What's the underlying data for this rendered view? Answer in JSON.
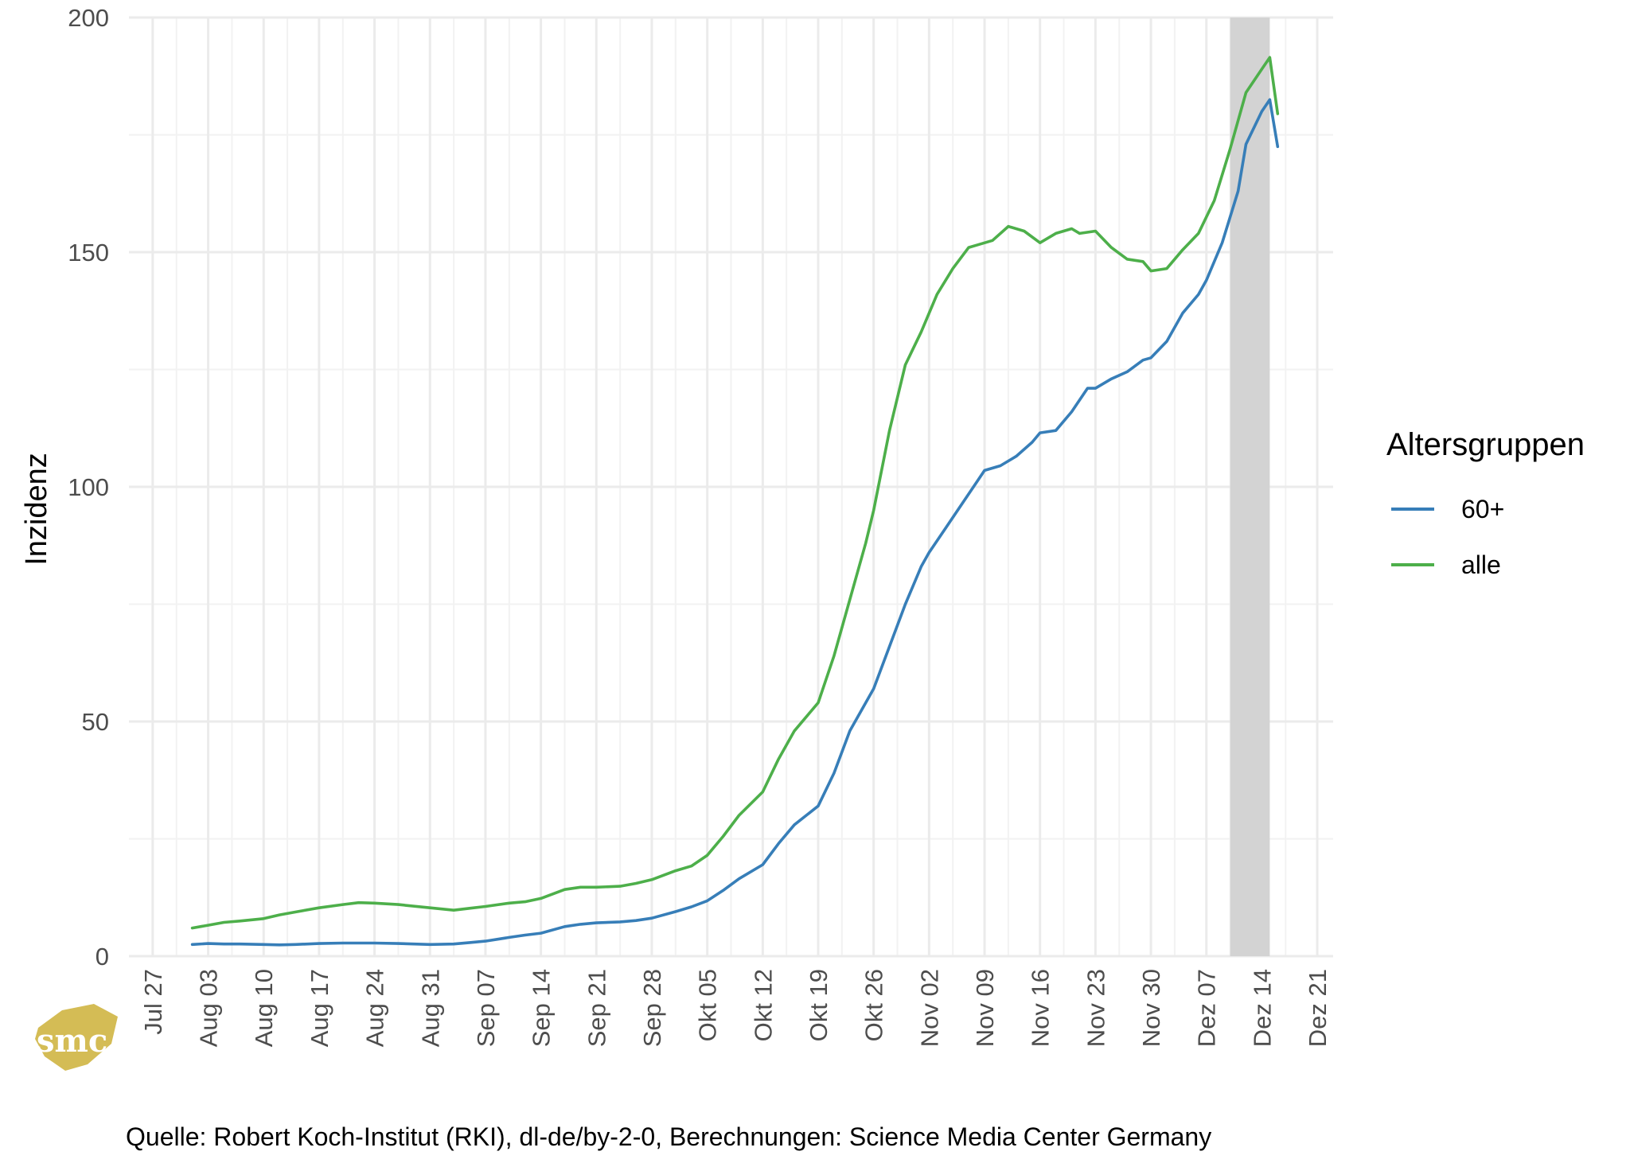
{
  "chart_data": {
    "type": "line",
    "title": "",
    "xlabel": "",
    "ylabel": "Inzidenz",
    "caption": "Quelle: Robert Koch-Institut (RKI), dl-de/by-2-0, Berechnungen: Science Media Center Germany",
    "logo_text": "smc",
    "grid": true,
    "ylim": [
      0,
      200
    ],
    "yticks": [
      0,
      50,
      100,
      150,
      200
    ],
    "xlim": [
      "2020-07-24",
      "2020-12-23"
    ],
    "xticks": [
      {
        "date": "2020-07-27",
        "label": "Jul 27"
      },
      {
        "date": "2020-08-03",
        "label": "Aug 03"
      },
      {
        "date": "2020-08-10",
        "label": "Aug 10"
      },
      {
        "date": "2020-08-17",
        "label": "Aug 17"
      },
      {
        "date": "2020-08-24",
        "label": "Aug 24"
      },
      {
        "date": "2020-08-31",
        "label": "Aug 31"
      },
      {
        "date": "2020-09-07",
        "label": "Sep 07"
      },
      {
        "date": "2020-09-14",
        "label": "Sep 14"
      },
      {
        "date": "2020-09-21",
        "label": "Sep 21"
      },
      {
        "date": "2020-09-28",
        "label": "Sep 28"
      },
      {
        "date": "2020-10-05",
        "label": "Okt 05"
      },
      {
        "date": "2020-10-12",
        "label": "Okt 12"
      },
      {
        "date": "2020-10-19",
        "label": "Okt 19"
      },
      {
        "date": "2020-10-26",
        "label": "Okt 26"
      },
      {
        "date": "2020-11-02",
        "label": "Nov 02"
      },
      {
        "date": "2020-11-09",
        "label": "Nov 09"
      },
      {
        "date": "2020-11-16",
        "label": "Nov 16"
      },
      {
        "date": "2020-11-23",
        "label": "Nov 23"
      },
      {
        "date": "2020-11-30",
        "label": "Nov 30"
      },
      {
        "date": "2020-12-07",
        "label": "Dez 07"
      },
      {
        "date": "2020-12-14",
        "label": "Dez 14"
      },
      {
        "date": "2020-12-21",
        "label": "Dez 21"
      }
    ],
    "shaded_region": {
      "from": "2020-12-10",
      "to": "2020-12-15",
      "color": "#d3d3d3"
    },
    "legend": {
      "title": "Altersgruppen",
      "position": "right"
    },
    "series": [
      {
        "name": "60+",
        "color": "#377eb8",
        "points": [
          [
            "2020-08-01",
            2.5
          ],
          [
            "2020-08-03",
            2.7
          ],
          [
            "2020-08-05",
            2.6
          ],
          [
            "2020-08-07",
            2.6
          ],
          [
            "2020-08-10",
            2.5
          ],
          [
            "2020-08-12",
            2.4
          ],
          [
            "2020-08-14",
            2.5
          ],
          [
            "2020-08-17",
            2.7
          ],
          [
            "2020-08-20",
            2.8
          ],
          [
            "2020-08-24",
            2.8
          ],
          [
            "2020-08-27",
            2.7
          ],
          [
            "2020-08-31",
            2.5
          ],
          [
            "2020-09-03",
            2.6
          ],
          [
            "2020-09-05",
            2.9
          ],
          [
            "2020-09-07",
            3.2
          ],
          [
            "2020-09-10",
            4.0
          ],
          [
            "2020-09-12",
            4.5
          ],
          [
            "2020-09-14",
            4.9
          ],
          [
            "2020-09-17",
            6.3
          ],
          [
            "2020-09-19",
            6.8
          ],
          [
            "2020-09-21",
            7.1
          ],
          [
            "2020-09-24",
            7.3
          ],
          [
            "2020-09-26",
            7.6
          ],
          [
            "2020-09-28",
            8.1
          ],
          [
            "2020-10-01",
            9.5
          ],
          [
            "2020-10-03",
            10.5
          ],
          [
            "2020-10-05",
            11.8
          ],
          [
            "2020-10-07",
            14.0
          ],
          [
            "2020-10-09",
            16.5
          ],
          [
            "2020-10-12",
            19.5
          ],
          [
            "2020-10-14",
            24.0
          ],
          [
            "2020-10-16",
            28.0
          ],
          [
            "2020-10-19",
            32.0
          ],
          [
            "2020-10-21",
            39.0
          ],
          [
            "2020-10-23",
            48.0
          ],
          [
            "2020-10-26",
            57.0
          ],
          [
            "2020-10-28",
            66.0
          ],
          [
            "2020-10-30",
            75.0
          ],
          [
            "2020-11-01",
            83.0
          ],
          [
            "2020-11-02",
            86.0
          ],
          [
            "2020-11-04",
            91.0
          ],
          [
            "2020-11-06",
            96.0
          ],
          [
            "2020-11-08",
            101.0
          ],
          [
            "2020-11-09",
            103.5
          ],
          [
            "2020-11-11",
            104.5
          ],
          [
            "2020-11-13",
            106.5
          ],
          [
            "2020-11-15",
            109.5
          ],
          [
            "2020-11-16",
            111.5
          ],
          [
            "2020-11-18",
            112.0
          ],
          [
            "2020-11-20",
            116.0
          ],
          [
            "2020-11-22",
            121.0
          ],
          [
            "2020-11-23",
            121.0
          ],
          [
            "2020-11-25",
            123.0
          ],
          [
            "2020-11-27",
            124.5
          ],
          [
            "2020-11-29",
            127.0
          ],
          [
            "2020-11-30",
            127.5
          ],
          [
            "2020-12-02",
            131.0
          ],
          [
            "2020-12-04",
            137.0
          ],
          [
            "2020-12-06",
            141.0
          ],
          [
            "2020-12-07",
            144.0
          ],
          [
            "2020-12-09",
            152.0
          ],
          [
            "2020-12-11",
            163.0
          ],
          [
            "2020-12-12",
            173.0
          ],
          [
            "2020-12-14",
            180.0
          ],
          [
            "2020-12-15",
            182.5
          ],
          [
            "2020-12-16",
            172.5
          ]
        ]
      },
      {
        "name": "alle",
        "color": "#4daf4a",
        "points": [
          [
            "2020-08-01",
            6.0
          ],
          [
            "2020-08-03",
            6.6
          ],
          [
            "2020-08-05",
            7.2
          ],
          [
            "2020-08-07",
            7.5
          ],
          [
            "2020-08-10",
            8.0
          ],
          [
            "2020-08-12",
            8.8
          ],
          [
            "2020-08-14",
            9.4
          ],
          [
            "2020-08-17",
            10.3
          ],
          [
            "2020-08-20",
            11.0
          ],
          [
            "2020-08-22",
            11.4
          ],
          [
            "2020-08-24",
            11.3
          ],
          [
            "2020-08-27",
            11.0
          ],
          [
            "2020-08-31",
            10.3
          ],
          [
            "2020-09-03",
            9.8
          ],
          [
            "2020-09-05",
            10.2
          ],
          [
            "2020-09-07",
            10.6
          ],
          [
            "2020-09-10",
            11.3
          ],
          [
            "2020-09-12",
            11.6
          ],
          [
            "2020-09-14",
            12.3
          ],
          [
            "2020-09-17",
            14.2
          ],
          [
            "2020-09-19",
            14.7
          ],
          [
            "2020-09-21",
            14.7
          ],
          [
            "2020-09-24",
            14.9
          ],
          [
            "2020-09-26",
            15.5
          ],
          [
            "2020-09-28",
            16.3
          ],
          [
            "2020-10-01",
            18.2
          ],
          [
            "2020-10-03",
            19.2
          ],
          [
            "2020-10-05",
            21.5
          ],
          [
            "2020-10-07",
            25.5
          ],
          [
            "2020-10-09",
            30.0
          ],
          [
            "2020-10-12",
            35.0
          ],
          [
            "2020-10-14",
            42.0
          ],
          [
            "2020-10-16",
            48.0
          ],
          [
            "2020-10-19",
            54.0
          ],
          [
            "2020-10-21",
            64.0
          ],
          [
            "2020-10-23",
            76.0
          ],
          [
            "2020-10-25",
            88.0
          ],
          [
            "2020-10-26",
            95.0
          ],
          [
            "2020-10-28",
            112.0
          ],
          [
            "2020-10-30",
            126.0
          ],
          [
            "2020-11-01",
            133.0
          ],
          [
            "2020-11-03",
            141.0
          ],
          [
            "2020-11-05",
            146.5
          ],
          [
            "2020-11-07",
            151.0
          ],
          [
            "2020-11-08",
            151.5
          ],
          [
            "2020-11-10",
            152.5
          ],
          [
            "2020-11-12",
            155.5
          ],
          [
            "2020-11-14",
            154.5
          ],
          [
            "2020-11-16",
            152.0
          ],
          [
            "2020-11-18",
            154.0
          ],
          [
            "2020-11-20",
            155.0
          ],
          [
            "2020-11-21",
            154.0
          ],
          [
            "2020-11-23",
            154.5
          ],
          [
            "2020-11-25",
            151.0
          ],
          [
            "2020-11-27",
            148.5
          ],
          [
            "2020-11-29",
            148.0
          ],
          [
            "2020-11-30",
            146.0
          ],
          [
            "2020-12-02",
            146.5
          ],
          [
            "2020-12-04",
            150.5
          ],
          [
            "2020-12-06",
            154.0
          ],
          [
            "2020-12-08",
            161.0
          ],
          [
            "2020-12-10",
            172.0
          ],
          [
            "2020-12-12",
            184.0
          ],
          [
            "2020-12-14",
            189.0
          ],
          [
            "2020-12-15",
            191.5
          ],
          [
            "2020-12-16",
            179.5
          ]
        ]
      }
    ]
  }
}
